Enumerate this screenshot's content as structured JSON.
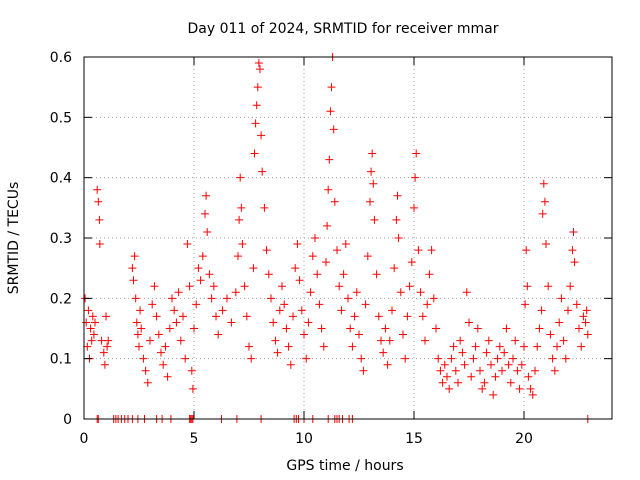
{
  "chart_data": {
    "type": "scatter",
    "title": "Day 011 of 2024, SRMTID for receiver mmar",
    "xlabel": "GPS time / hours",
    "ylabel": "SRMTID / TECUs",
    "xlim": [
      0,
      24
    ],
    "ylim": [
      0,
      0.6
    ],
    "x_ticks": [
      "0",
      "5",
      "10",
      "15",
      "20"
    ],
    "x_tick_values": [
      0,
      5,
      10,
      15,
      20
    ],
    "y_ticks": [
      "0",
      "0.1",
      "0.2",
      "0.3",
      "0.4",
      "0.5",
      "0.6"
    ],
    "y_tick_values": [
      0,
      0.1,
      0.2,
      0.3,
      0.4,
      0.5,
      0.6
    ],
    "grid": true,
    "marker": "+",
    "color": "#ff0000",
    "series": [
      {
        "name": "SRMTID",
        "points": [
          [
            0.05,
            0.2
          ],
          [
            0.1,
            0.16
          ],
          [
            0.15,
            0.12
          ],
          [
            0.2,
            0.18
          ],
          [
            0.25,
            0.1
          ],
          [
            0.3,
            0.15
          ],
          [
            0.35,
            0.13
          ],
          [
            0.4,
            0.17
          ],
          [
            0.45,
            0.14
          ],
          [
            0.5,
            0.16
          ],
          [
            0.6,
            0.38
          ],
          [
            0.65,
            0.36
          ],
          [
            0.7,
            0.33
          ],
          [
            0.72,
            0.29
          ],
          [
            0.8,
            0.13
          ],
          [
            0.9,
            0.11
          ],
          [
            0.95,
            0.09
          ],
          [
            1.0,
            0.17
          ],
          [
            1.05,
            0.12
          ],
          [
            1.1,
            0.13
          ],
          [
            2.2,
            0.25
          ],
          [
            2.25,
            0.23
          ],
          [
            2.3,
            0.27
          ],
          [
            2.35,
            0.2
          ],
          [
            2.4,
            0.16
          ],
          [
            2.45,
            0.14
          ],
          [
            2.5,
            0.12
          ],
          [
            2.55,
            0.18
          ],
          [
            2.6,
            0.15
          ],
          [
            2.7,
            0.1
          ],
          [
            2.8,
            0.08
          ],
          [
            2.9,
            0.06
          ],
          [
            3.0,
            0.13
          ],
          [
            3.1,
            0.19
          ],
          [
            3.2,
            0.22
          ],
          [
            3.3,
            0.17
          ],
          [
            3.4,
            0.14
          ],
          [
            3.5,
            0.11
          ],
          [
            3.6,
            0.09
          ],
          [
            3.7,
            0.12
          ],
          [
            3.8,
            0.07
          ],
          [
            3.9,
            0.15
          ],
          [
            4.0,
            0.2
          ],
          [
            4.1,
            0.18
          ],
          [
            4.2,
            0.16
          ],
          [
            4.3,
            0.21
          ],
          [
            4.4,
            0.13
          ],
          [
            4.5,
            0.17
          ],
          [
            4.6,
            0.1
          ],
          [
            4.7,
            0.29
          ],
          [
            4.8,
            0.22
          ],
          [
            4.9,
            0.08
          ],
          [
            4.95,
            0.05
          ],
          [
            5.0,
            0.15
          ],
          [
            5.1,
            0.19
          ],
          [
            5.2,
            0.25
          ],
          [
            5.3,
            0.23
          ],
          [
            5.4,
            0.27
          ],
          [
            5.5,
            0.34
          ],
          [
            5.55,
            0.37
          ],
          [
            5.6,
            0.31
          ],
          [
            5.7,
            0.24
          ],
          [
            5.8,
            0.2
          ],
          [
            5.9,
            0.22
          ],
          [
            6.0,
            0.17
          ],
          [
            6.1,
            0.14
          ],
          [
            6.3,
            0.18
          ],
          [
            6.5,
            0.2
          ],
          [
            6.7,
            0.16
          ],
          [
            6.9,
            0.21
          ],
          [
            7.0,
            0.27
          ],
          [
            7.05,
            0.33
          ],
          [
            7.1,
            0.4
          ],
          [
            7.15,
            0.35
          ],
          [
            7.2,
            0.29
          ],
          [
            7.3,
            0.22
          ],
          [
            7.4,
            0.17
          ],
          [
            7.5,
            0.12
          ],
          [
            7.6,
            0.1
          ],
          [
            7.7,
            0.25
          ],
          [
            7.75,
            0.44
          ],
          [
            7.8,
            0.49
          ],
          [
            7.85,
            0.52
          ],
          [
            7.9,
            0.55
          ],
          [
            7.95,
            0.59
          ],
          [
            8.0,
            0.58
          ],
          [
            8.05,
            0.47
          ],
          [
            8.1,
            0.41
          ],
          [
            8.2,
            0.35
          ],
          [
            8.3,
            0.28
          ],
          [
            8.4,
            0.24
          ],
          [
            8.5,
            0.2
          ],
          [
            8.6,
            0.16
          ],
          [
            8.7,
            0.13
          ],
          [
            8.8,
            0.11
          ],
          [
            8.9,
            0.18
          ],
          [
            9.0,
            0.22
          ],
          [
            9.1,
            0.19
          ],
          [
            9.2,
            0.15
          ],
          [
            9.3,
            0.12
          ],
          [
            9.4,
            0.09
          ],
          [
            9.5,
            0.17
          ],
          [
            9.6,
            0.25
          ],
          [
            9.7,
            0.29
          ],
          [
            9.8,
            0.23
          ],
          [
            9.9,
            0.18
          ],
          [
            10.0,
            0.14
          ],
          [
            10.1,
            0.1
          ],
          [
            10.2,
            0.16
          ],
          [
            10.3,
            0.21
          ],
          [
            10.4,
            0.27
          ],
          [
            10.5,
            0.3
          ],
          [
            10.6,
            0.24
          ],
          [
            10.7,
            0.19
          ],
          [
            10.8,
            0.15
          ],
          [
            10.9,
            0.12
          ],
          [
            11.0,
            0.26
          ],
          [
            11.05,
            0.32
          ],
          [
            11.1,
            0.38
          ],
          [
            11.15,
            0.43
          ],
          [
            11.2,
            0.51
          ],
          [
            11.25,
            0.55
          ],
          [
            11.3,
            0.6
          ],
          [
            11.35,
            0.48
          ],
          [
            11.4,
            0.36
          ],
          [
            11.5,
            0.28
          ],
          [
            11.6,
            0.22
          ],
          [
            11.7,
            0.18
          ],
          [
            11.8,
            0.24
          ],
          [
            11.9,
            0.29
          ],
          [
            12.0,
            0.2
          ],
          [
            12.1,
            0.15
          ],
          [
            12.2,
            0.12
          ],
          [
            12.3,
            0.17
          ],
          [
            12.4,
            0.21
          ],
          [
            12.5,
            0.14
          ],
          [
            12.6,
            0.1
          ],
          [
            12.7,
            0.08
          ],
          [
            12.8,
            0.19
          ],
          [
            12.9,
            0.27
          ],
          [
            13.0,
            0.36
          ],
          [
            13.05,
            0.41
          ],
          [
            13.1,
            0.44
          ],
          [
            13.15,
            0.39
          ],
          [
            13.2,
            0.33
          ],
          [
            13.3,
            0.24
          ],
          [
            13.4,
            0.17
          ],
          [
            13.5,
            0.13
          ],
          [
            13.6,
            0.11
          ],
          [
            13.7,
            0.15
          ],
          [
            13.8,
            0.09
          ],
          [
            13.9,
            0.13
          ],
          [
            14.0,
            0.18
          ],
          [
            14.1,
            0.25
          ],
          [
            14.2,
            0.33
          ],
          [
            14.25,
            0.37
          ],
          [
            14.3,
            0.3
          ],
          [
            14.4,
            0.21
          ],
          [
            14.5,
            0.14
          ],
          [
            14.6,
            0.1
          ],
          [
            14.7,
            0.17
          ],
          [
            14.8,
            0.22
          ],
          [
            14.9,
            0.26
          ],
          [
            15.0,
            0.35
          ],
          [
            15.05,
            0.4
          ],
          [
            15.1,
            0.44
          ],
          [
            15.2,
            0.28
          ],
          [
            15.3,
            0.21
          ],
          [
            15.4,
            0.17
          ],
          [
            15.5,
            0.13
          ],
          [
            15.6,
            0.19
          ],
          [
            15.7,
            0.24
          ],
          [
            15.8,
            0.28
          ],
          [
            15.9,
            0.2
          ],
          [
            16.0,
            0.15
          ],
          [
            16.1,
            0.1
          ],
          [
            16.2,
            0.08
          ],
          [
            16.3,
            0.06
          ],
          [
            16.4,
            0.09
          ],
          [
            16.5,
            0.07
          ],
          [
            16.6,
            0.05
          ],
          [
            16.7,
            0.1
          ],
          [
            16.8,
            0.12
          ],
          [
            16.9,
            0.08
          ],
          [
            17.0,
            0.06
          ],
          [
            17.1,
            0.13
          ],
          [
            17.2,
            0.11
          ],
          [
            17.3,
            0.09
          ],
          [
            17.4,
            0.21
          ],
          [
            17.5,
            0.16
          ],
          [
            17.6,
            0.07
          ],
          [
            17.7,
            0.1
          ],
          [
            17.8,
            0.12
          ],
          [
            17.9,
            0.15
          ],
          [
            18.0,
            0.08
          ],
          [
            18.1,
            0.05
          ],
          [
            18.2,
            0.06
          ],
          [
            18.3,
            0.11
          ],
          [
            18.4,
            0.13
          ],
          [
            18.5,
            0.09
          ],
          [
            18.6,
            0.04
          ],
          [
            18.7,
            0.07
          ],
          [
            18.8,
            0.1
          ],
          [
            18.9,
            0.12
          ],
          [
            19.0,
            0.08
          ],
          [
            19.1,
            0.11
          ],
          [
            19.2,
            0.15
          ],
          [
            19.3,
            0.09
          ],
          [
            19.4,
            0.06
          ],
          [
            19.5,
            0.1
          ],
          [
            19.6,
            0.13
          ],
          [
            19.7,
            0.08
          ],
          [
            19.8,
            0.05
          ],
          [
            19.9,
            0.09
          ],
          [
            20.0,
            0.12
          ],
          [
            20.05,
            0.19
          ],
          [
            20.1,
            0.28
          ],
          [
            20.15,
            0.22
          ],
          [
            20.2,
            0.07
          ],
          [
            20.3,
            0.05
          ],
          [
            20.4,
            0.04
          ],
          [
            20.5,
            0.08
          ],
          [
            20.6,
            0.12
          ],
          [
            20.7,
            0.15
          ],
          [
            20.8,
            0.18
          ],
          [
            20.85,
            0.34
          ],
          [
            20.9,
            0.39
          ],
          [
            20.95,
            0.36
          ],
          [
            21.0,
            0.29
          ],
          [
            21.1,
            0.22
          ],
          [
            21.2,
            0.14
          ],
          [
            21.3,
            0.1
          ],
          [
            21.4,
            0.08
          ],
          [
            21.5,
            0.12
          ],
          [
            21.6,
            0.16
          ],
          [
            21.7,
            0.2
          ],
          [
            21.8,
            0.13
          ],
          [
            21.9,
            0.1
          ],
          [
            22.0,
            0.18
          ],
          [
            22.1,
            0.22
          ],
          [
            22.2,
            0.28
          ],
          [
            22.25,
            0.31
          ],
          [
            22.3,
            0.26
          ],
          [
            22.4,
            0.19
          ],
          [
            22.5,
            0.15
          ],
          [
            22.6,
            0.12
          ],
          [
            22.7,
            0.17
          ],
          [
            22.8,
            0.16
          ],
          [
            22.85,
            0.18
          ],
          [
            22.9,
            0.14
          ]
        ],
        "zero_points": [
          0.6,
          0.65,
          1.35,
          1.45,
          1.55,
          1.7,
          1.85,
          2.0,
          2.2,
          2.45,
          2.75,
          3.3,
          3.55,
          3.95,
          4.8,
          4.85,
          4.9,
          4.95,
          6.25,
          6.95,
          8.05,
          9.55,
          9.65,
          9.75,
          10.0,
          10.4,
          11.1,
          11.4,
          11.5,
          11.6,
          11.75,
          12.05,
          12.2,
          22.9
        ]
      }
    ]
  }
}
